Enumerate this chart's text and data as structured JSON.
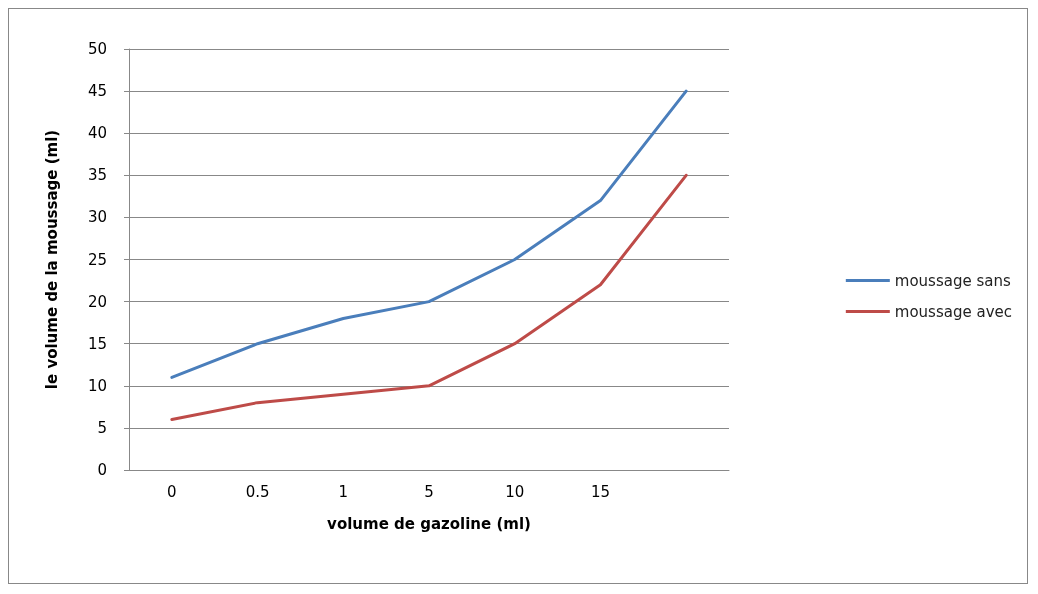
{
  "chart_data": {
    "type": "line",
    "xlabel": "volume de gazoline (ml)",
    "ylabel": "le volume de la moussage (ml)",
    "categories": [
      "0",
      "0.5",
      "1",
      "5",
      "10",
      "15",
      null
    ],
    "series": [
      {
        "name": "moussage sans",
        "color": "#4a7ebb",
        "values": [
          11,
          15,
          18,
          20,
          25,
          32,
          45
        ]
      },
      {
        "name": "moussage avec",
        "color": "#be4b48",
        "values": [
          6,
          8,
          9,
          10,
          15,
          22,
          35
        ]
      }
    ],
    "ylim": [
      0,
      50
    ],
    "yticks": [
      0,
      5,
      10,
      15,
      20,
      25,
      30,
      35,
      40,
      45,
      50
    ],
    "grid": "y",
    "legend": "right",
    "marker": "none",
    "line_style": "solid"
  }
}
